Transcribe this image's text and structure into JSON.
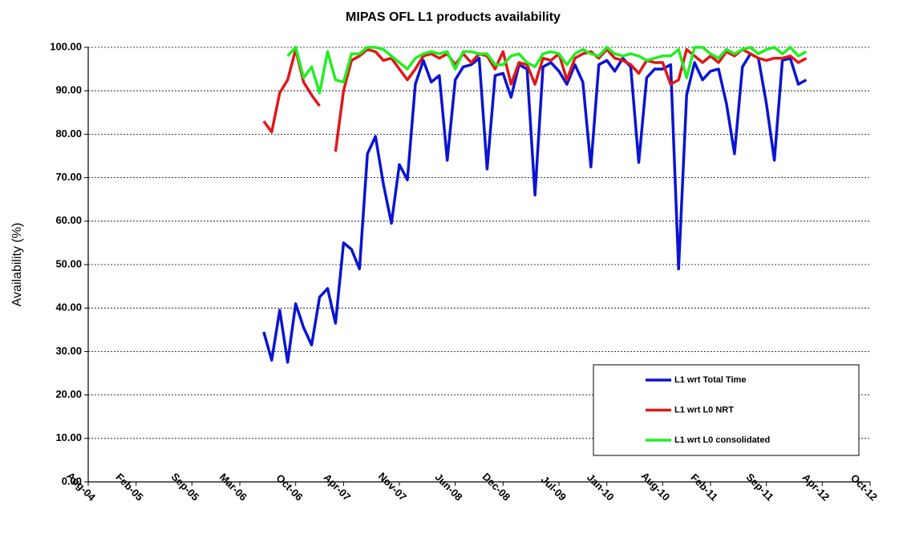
{
  "chart_data": {
    "type": "line",
    "title": "MIPAS OFL L1 products availability",
    "y_label": "Availability (%)",
    "x": [
      "2006-06",
      "2006-07",
      "2006-08",
      "2006-09",
      "2006-10",
      "2006-11",
      "2006-12",
      "2007-01",
      "2007-02",
      "2007-03",
      "2007-04",
      "2007-05",
      "2007-06",
      "2007-07",
      "2007-08",
      "2007-09",
      "2007-10",
      "2007-11",
      "2007-12",
      "2008-01",
      "2008-02",
      "2008-03",
      "2008-04",
      "2008-05",
      "2008-06",
      "2008-07",
      "2008-08",
      "2008-09",
      "2008-10",
      "2008-11",
      "2008-12",
      "2009-01",
      "2009-02",
      "2009-03",
      "2009-04",
      "2009-05",
      "2009-06",
      "2009-07",
      "2009-08",
      "2009-09",
      "2009-10",
      "2009-11",
      "2009-12",
      "2010-01",
      "2010-02",
      "2010-03",
      "2010-04",
      "2010-05",
      "2010-06",
      "2010-07",
      "2010-08",
      "2010-09",
      "2010-10",
      "2010-11",
      "2010-12",
      "2011-01",
      "2011-02",
      "2011-03",
      "2011-04",
      "2011-05",
      "2011-06",
      "2011-07",
      "2011-08",
      "2011-09",
      "2011-10",
      "2011-11",
      "2011-12",
      "2012-01",
      "2012-02"
    ],
    "series": [
      {
        "name": "L1 wrt Total Time",
        "color": "#0a14d2",
        "values": [
          34.5,
          28,
          39.5,
          27.5,
          41,
          35.5,
          31.5,
          42.5,
          44.5,
          36.5,
          55,
          53.5,
          49,
          75.5,
          79.5,
          68.5,
          59.5,
          73,
          69.5,
          91.5,
          97,
          92,
          93.5,
          74,
          92.5,
          95.5,
          96,
          97.5,
          72,
          93.5,
          94,
          88.5,
          96,
          95,
          66,
          95.5,
          96.5,
          94.5,
          91.5,
          96,
          92,
          72.5,
          96,
          97,
          94.5,
          97.5,
          95.5,
          73.5,
          93,
          95,
          95,
          96,
          49,
          89,
          96.5,
          92.5,
          94.5,
          95,
          87,
          75.5,
          95.5,
          98.5,
          97.5,
          87,
          74,
          97,
          97.5,
          91.5,
          92.5
        ]
      },
      {
        "name": "L1 wrt L0 NRT",
        "color": "#e01818",
        "values": [
          83,
          80.5,
          89.5,
          92.5,
          99.5,
          92,
          89,
          86.5,
          null,
          76,
          90,
          97,
          98,
          99.5,
          99,
          97,
          97.5,
          95,
          92.5,
          95,
          98,
          98.5,
          97.5,
          98.5,
          96,
          98.5,
          96.5,
          98.5,
          98,
          95,
          99,
          91.5,
          96.5,
          96,
          91.5,
          97.5,
          97,
          98.5,
          92.5,
          97.5,
          98.5,
          99,
          97.5,
          99.5,
          97.5,
          97,
          96,
          94,
          97,
          96.5,
          96.5,
          91.5,
          92.5,
          99.5,
          98,
          96.5,
          98,
          96.5,
          99,
          98,
          99.5,
          98.5,
          97.5,
          97,
          97.5,
          97.5,
          98,
          96.5,
          97.5
        ]
      },
      {
        "name": "L1 wrt L0 consolidated",
        "color": "#22ee22",
        "values": [
          null,
          null,
          null,
          98,
          100,
          93,
          95.5,
          89.5,
          99,
          92.5,
          92,
          98.5,
          98.5,
          100,
          100,
          99.5,
          98,
          96.5,
          95,
          97.5,
          98.5,
          99,
          98.5,
          99,
          95,
          99,
          99,
          98.5,
          98.5,
          96,
          96,
          98,
          98.5,
          96.5,
          95.5,
          98.5,
          99,
          98.5,
          96,
          98.5,
          99.5,
          98.5,
          98,
          100,
          98.5,
          98,
          98.5,
          98,
          97,
          97.5,
          98,
          98,
          99.5,
          93,
          100,
          100,
          98.5,
          97.5,
          99.5,
          98.5,
          99.5,
          100,
          98.5,
          99.5,
          100,
          98.5,
          100,
          98,
          99
        ]
      }
    ],
    "xlim": [
      "2004-08",
      "2012-10"
    ],
    "xticks": [
      {
        "value": "2004-08",
        "label": "Aug-04"
      },
      {
        "value": "2005-02",
        "label": "Feb-05"
      },
      {
        "value": "2005-09",
        "label": "Sep-05"
      },
      {
        "value": "2006-03",
        "label": "Mar-06"
      },
      {
        "value": "2006-10",
        "label": "Oct-06"
      },
      {
        "value": "2007-04",
        "label": "Apr-07"
      },
      {
        "value": "2007-11",
        "label": "Nov-07"
      },
      {
        "value": "2008-06",
        "label": "Jun-08"
      },
      {
        "value": "2008-12",
        "label": "Dec-08"
      },
      {
        "value": "2009-07",
        "label": "Jul-09"
      },
      {
        "value": "2010-01",
        "label": "Jan-10"
      },
      {
        "value": "2010-08",
        "label": "Aug-10"
      },
      {
        "value": "2011-02",
        "label": "Feb-11"
      },
      {
        "value": "2011-09",
        "label": "Sep-11"
      },
      {
        "value": "2012-04",
        "label": "Apr-12"
      },
      {
        "value": "2012-10",
        "label": "Oct-12"
      }
    ],
    "ylim": [
      0,
      100
    ],
    "yticks": [
      {
        "value": 0,
        "label": "0.00"
      },
      {
        "value": 10,
        "label": "10.00"
      },
      {
        "value": 20,
        "label": "20.00"
      },
      {
        "value": 30,
        "label": "30.00"
      },
      {
        "value": 40,
        "label": "40.00"
      },
      {
        "value": 50,
        "label": "50.00"
      },
      {
        "value": 60,
        "label": "60.00"
      },
      {
        "value": 70,
        "label": "70.00"
      },
      {
        "value": 80,
        "label": "80.00"
      },
      {
        "value": 90,
        "label": "90.00"
      },
      {
        "value": 100,
        "label": "100.00"
      }
    ],
    "grid": true,
    "legend_position": "lower right"
  }
}
